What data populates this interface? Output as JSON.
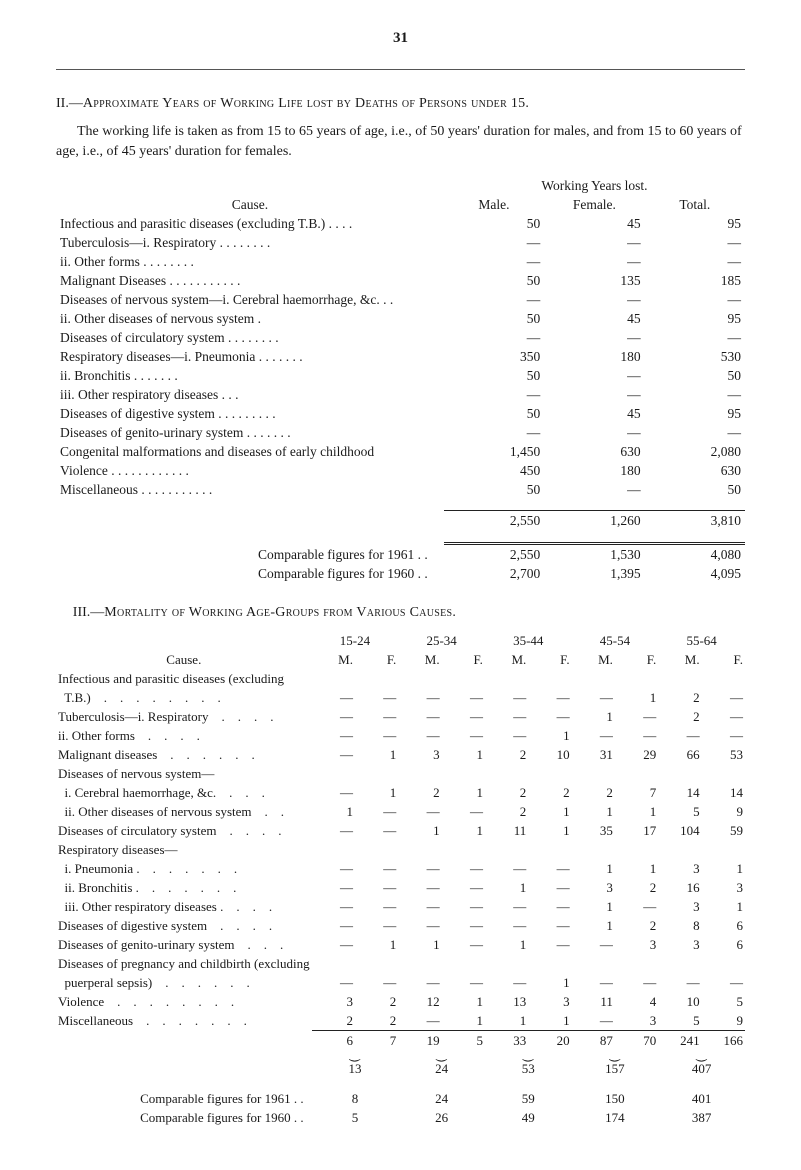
{
  "page_number": "31",
  "section2": {
    "heading_prefix": "II.—",
    "heading": "Approximate Years of Working Life lost by Deaths of Persons under 15.",
    "intro": "The working life is taken as from 15 to 65 years of age, i.e., of 50 years' duration for males, and from 15 to 60 years of age, i.e., of 45 years' duration for females.",
    "colhead_top": "Working Years lost.",
    "colhead_cause": "Cause.",
    "colhead_male": "Male.",
    "colhead_female": "Female.",
    "colhead_total": "Total.",
    "rows": [
      {
        "label": "Infectious and parasitic diseases (excluding T.B.)    .    .    .    .",
        "m": "50",
        "f": "45",
        "t": "95"
      },
      {
        "label": "Tuberculosis—i. Respiratory        .    .    .    .    .    .    .    .",
        "m": "—",
        "f": "—",
        "t": "—"
      },
      {
        "label": "ii. Other forms        .    .    .    .    .    .    .    .",
        "indent": "indent2",
        "m": "—",
        "f": "—",
        "t": "—"
      },
      {
        "label": "Malignant Diseases    .    .    .    .    .    .    .    .    .    .    .",
        "m": "50",
        "f": "135",
        "t": "185"
      },
      {
        "label": "Diseases of nervous system—i. Cerebral haemorrhage, &c.    .    .",
        "m": "—",
        "f": "—",
        "t": "—"
      },
      {
        "label": "ii. Other diseases of nervous system    .",
        "indent": "indent3",
        "m": "50",
        "f": "45",
        "t": "95"
      },
      {
        "label": "Diseases of circulatory system    .    .    .    .    .    .    .    .",
        "m": "—",
        "f": "—",
        "t": "—"
      },
      {
        "label": "Respiratory diseases—i. Pneumonia    .    .    .    .    .    .    .",
        "m": "350",
        "f": "180",
        "t": "530"
      },
      {
        "label": "ii. Bronchitis    .    .    .    .    .    .    .",
        "indent": "indent3",
        "m": "50",
        "f": "—",
        "t": "50"
      },
      {
        "label": "iii. Other respiratory diseases .    .    .",
        "indent": "indent3",
        "m": "—",
        "f": "—",
        "t": "—"
      },
      {
        "label": "Diseases of digestive system .    .    .    .    .    .    .    .    .",
        "m": "50",
        "f": "45",
        "t": "95"
      },
      {
        "label": "Diseases of genito-urinary system    .    .    .    .    .    .    .",
        "m": "—",
        "f": "—",
        "t": "—"
      },
      {
        "label": "Congenital malformations and diseases of early childhood",
        "m": "1,450",
        "f": "630",
        "t": "2,080"
      },
      {
        "label": "Violence    .    .    .    .    .    .    .    .    .    .    .    .",
        "m": "450",
        "f": "180",
        "t": "630"
      },
      {
        "label": "Miscellaneous    .    .    .    .    .    .    .    .    .    .    .",
        "m": "50",
        "f": "—",
        "t": "50"
      }
    ],
    "total": {
      "m": "2,550",
      "f": "1,260",
      "t": "3,810"
    },
    "comp1961": {
      "label": "Comparable figures for 1961 .    .",
      "m": "2,550",
      "f": "1,530",
      "t": "4,080"
    },
    "comp1960": {
      "label": "Comparable figures for 1960 .    .",
      "m": "2,700",
      "f": "1,395",
      "t": "4,095"
    }
  },
  "section3": {
    "heading_prefix": "III.—",
    "heading": "Mortality of Working Age-Groups from Various Causes.",
    "groups": [
      "15-24",
      "25-34",
      "35-44",
      "45-54",
      "55-64"
    ],
    "mf": [
      "M.",
      "F.",
      "M.",
      "F.",
      "M.",
      "F.",
      "M.",
      "F.",
      "M.",
      "F."
    ],
    "cause_label": "Cause.",
    "rows": [
      {
        "label": "Infectious and parasitic diseases (excluding",
        "wrap": true
      },
      {
        "label": "  T.B.)    .    .    .    .    .    .    .    .",
        "v": [
          "—",
          "—",
          "—",
          "—",
          "—",
          "—",
          "—",
          "1",
          "2",
          "—"
        ]
      },
      {
        "label": "Tuberculosis—i. Respiratory    .    .    .    .",
        "v": [
          "—",
          "—",
          "—",
          "—",
          "—",
          "—",
          "1",
          "—",
          "2",
          "—"
        ]
      },
      {
        "label": "ii. Other forms    .    .    .    .",
        "indent": "indent2",
        "v": [
          "—",
          "—",
          "—",
          "—",
          "—",
          "1",
          "—",
          "—",
          "—",
          "—"
        ]
      },
      {
        "label": "Malignant diseases    .    .    .    .    .    .",
        "v": [
          "—",
          "1",
          "3",
          "1",
          "2",
          "10",
          "31",
          "29",
          "66",
          "53"
        ]
      },
      {
        "label": "Diseases of nervous system—",
        "wrap": true
      },
      {
        "label": "  i. Cerebral haemorrhage, &c.    .    .    .",
        "v": [
          "—",
          "1",
          "2",
          "1",
          "2",
          "2",
          "2",
          "7",
          "14",
          "14"
        ]
      },
      {
        "label": "  ii. Other diseases of nervous system    .    .",
        "v": [
          "1",
          "—",
          "—",
          "—",
          "2",
          "1",
          "1",
          "1",
          "5",
          "9"
        ]
      },
      {
        "label": "Diseases of circulatory system    .    .    .    .",
        "v": [
          "—",
          "—",
          "1",
          "1",
          "11",
          "1",
          "35",
          "17",
          "104",
          "59"
        ]
      },
      {
        "label": "Respiratory diseases—",
        "wrap": true
      },
      {
        "label": "  i. Pneumonia .    .    .    .    .    .    .",
        "v": [
          "—",
          "—",
          "—",
          "—",
          "—",
          "—",
          "1",
          "1",
          "3",
          "1"
        ]
      },
      {
        "label": "  ii. Bronchitis .    .    .    .    .    .    .",
        "v": [
          "—",
          "—",
          "—",
          "—",
          "1",
          "—",
          "3",
          "2",
          "16",
          "3"
        ]
      },
      {
        "label": "  iii. Other respiratory diseases .    .    .    .",
        "v": [
          "—",
          "—",
          "—",
          "—",
          "—",
          "—",
          "1",
          "—",
          "3",
          "1"
        ]
      },
      {
        "label": "Diseases of digestive system    .    .    .    .",
        "v": [
          "—",
          "—",
          "—",
          "—",
          "—",
          "—",
          "1",
          "2",
          "8",
          "6"
        ]
      },
      {
        "label": "Diseases of genito-urinary system    .    .    .",
        "v": [
          "—",
          "1",
          "1",
          "—",
          "1",
          "—",
          "—",
          "3",
          "3",
          "6"
        ]
      },
      {
        "label": "Diseases of pregnancy and childbirth (excluding",
        "wrap": true
      },
      {
        "label": "  puerperal sepsis)    .    .    .    .    .    .",
        "v": [
          "—",
          "—",
          "—",
          "—",
          "—",
          "1",
          "—",
          "—",
          "—",
          "—"
        ]
      },
      {
        "label": "Violence    .    .    .    .    .    .    .    .",
        "v": [
          "3",
          "2",
          "12",
          "1",
          "13",
          "3",
          "11",
          "4",
          "10",
          "5"
        ]
      },
      {
        "label": "Miscellaneous    .    .    .    .    .    .    .",
        "v": [
          "2",
          "2",
          "—",
          "1",
          "1",
          "1",
          "—",
          "3",
          "5",
          "9"
        ]
      }
    ],
    "subtotal": [
      "6",
      "7",
      "19",
      "5",
      "33",
      "20",
      "87",
      "70",
      "241",
      "166"
    ],
    "groupTotals": [
      "13",
      "24",
      "53",
      "157",
      "407"
    ],
    "comp1961": {
      "label": "Comparable figures for 1961 .    .",
      "t": [
        "8",
        "24",
        "59",
        "150",
        "401"
      ]
    },
    "comp1960": {
      "label": "Comparable figures for 1960 .    .",
      "t": [
        "5",
        "26",
        "49",
        "174",
        "387"
      ]
    }
  }
}
